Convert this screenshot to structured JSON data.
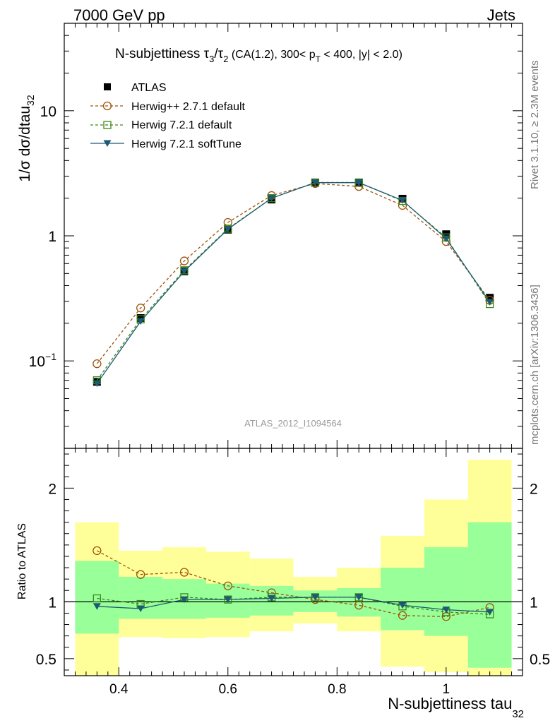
{
  "header": {
    "energy": "7000 GeV pp",
    "category": "Jets",
    "side_rivet": "Rivet 3.1.10, ≥ 2.3M events",
    "side_mcplots": "mcplots.cern.ch [arXiv:1306.3436]",
    "analysis_id": "ATLAS_2012_I1094564"
  },
  "colors": {
    "atlas": "#000000",
    "herwigpp": "#a0530a",
    "herwig721": "#3a8a1a",
    "softtune": "#1d5a73",
    "band_yellow": "#ffff99",
    "band_green": "#99ff99"
  },
  "chart_data": [
    {
      "type": "line",
      "panel": "main",
      "title_parts": {
        "main": "N-subjettiness τ",
        "sub3": "3",
        "slash": "/τ",
        "sub2": "2",
        "cuts_a": " (CA(1.2), 300< p",
        "sub_T": "T",
        "cuts_b": " < 400, |y| < 2.0)"
      },
      "ylabel": "1/σ dσ/dtau",
      "ylabel_sub": "32",
      "yscale": "log",
      "ylim": [
        0.02,
        50
      ],
      "xlim": [
        0.3,
        1.14
      ],
      "y_ticks": [
        {
          "value": 0.1,
          "label": "10",
          "sup": "−1"
        },
        {
          "value": 1,
          "label": "1",
          "sup": ""
        },
        {
          "value": 10,
          "label": "10",
          "sup": ""
        }
      ],
      "x": [
        0.36,
        0.44,
        0.52,
        0.6,
        0.68,
        0.76,
        0.84,
        0.92,
        1.0,
        1.08
      ],
      "series": [
        {
          "name": "ATLAS",
          "key": "atlas",
          "values": [
            0.068,
            0.22,
            0.52,
            1.12,
            1.95,
            2.65,
            2.65,
            1.98,
            1.03,
            0.32
          ]
        },
        {
          "name": "Herwig++ 2.7.1 default",
          "key": "herwigpp",
          "values": [
            0.095,
            0.265,
            0.63,
            1.28,
            2.1,
            2.62,
            2.48,
            1.75,
            0.9,
            0.305
          ]
        },
        {
          "name": "Herwig 7.2.1 default",
          "key": "herwig721",
          "values": [
            0.07,
            0.215,
            0.53,
            1.14,
            2.0,
            2.67,
            2.67,
            1.9,
            0.97,
            0.285
          ]
        },
        {
          "name": "Herwig 7.2.1 softTune",
          "key": "softtune",
          "values": [
            0.066,
            0.207,
            0.52,
            1.13,
            2.0,
            2.66,
            2.66,
            1.92,
            0.95,
            0.295
          ]
        }
      ]
    },
    {
      "type": "line",
      "panel": "ratio",
      "ylabel": "Ratio to ATLAS",
      "xlabel": "N-subjettiness tau",
      "xlabel_sub": "32",
      "ylim": [
        0.35,
        2.35
      ],
      "xlim": [
        0.3,
        1.14
      ],
      "x_ticks": [
        0.4,
        0.6,
        0.8,
        1.0
      ],
      "x_tick_labels": [
        "0.4",
        "0.6",
        "0.8",
        "1"
      ],
      "y_ticks": [
        0.5,
        1,
        2
      ],
      "y_tick_labels": [
        "0.5",
        "1",
        "2"
      ],
      "bin_edges": [
        0.32,
        0.4,
        0.48,
        0.56,
        0.64,
        0.72,
        0.8,
        0.88,
        0.96,
        1.04,
        1.12
      ],
      "band_yellow": [
        [
          0.35,
          1.7
        ],
        [
          0.69,
          1.45
        ],
        [
          0.68,
          1.48
        ],
        [
          0.69,
          1.44
        ],
        [
          0.74,
          1.38
        ],
        [
          0.81,
          1.22
        ],
        [
          0.74,
          1.3
        ],
        [
          0.43,
          1.58
        ],
        [
          0.38,
          1.9
        ],
        [
          0.35,
          2.25
        ]
      ],
      "band_green": [
        [
          0.72,
          1.36
        ],
        [
          0.85,
          1.22
        ],
        [
          0.85,
          1.2
        ],
        [
          0.86,
          1.16
        ],
        [
          0.88,
          1.14
        ],
        [
          0.91,
          1.1
        ],
        [
          0.87,
          1.12
        ],
        [
          0.75,
          1.3
        ],
        [
          0.7,
          1.48
        ],
        [
          0.42,
          1.7
        ]
      ],
      "x": [
        0.36,
        0.44,
        0.52,
        0.6,
        0.68,
        0.76,
        0.84,
        0.92,
        1.0,
        1.08
      ],
      "series": [
        {
          "name": "Herwig++ 2.7.1 default",
          "key": "herwigpp",
          "values": [
            1.45,
            1.24,
            1.26,
            1.14,
            1.08,
            1.02,
            0.97,
            0.88,
            0.87,
            0.95
          ]
        },
        {
          "name": "Herwig 7.2.1 default",
          "key": "herwig721",
          "values": [
            1.03,
            0.98,
            1.04,
            1.02,
            1.04,
            1.04,
            1.04,
            0.96,
            0.91,
            0.89
          ]
        },
        {
          "name": "Herwig 7.2.1 softTune",
          "key": "softtune",
          "values": [
            0.96,
            0.94,
            1.02,
            1.02,
            1.03,
            1.04,
            1.04,
            0.97,
            0.93,
            0.91
          ]
        }
      ]
    }
  ]
}
